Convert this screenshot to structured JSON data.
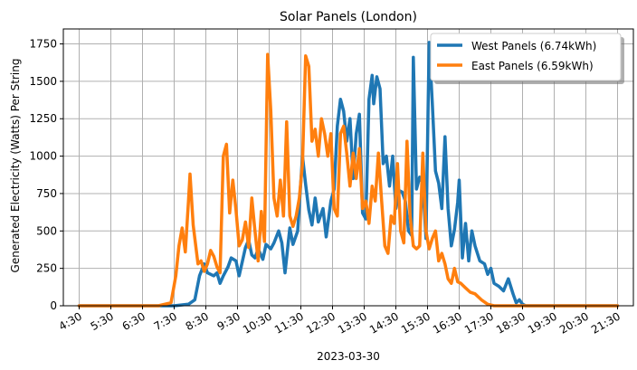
{
  "chart_data": {
    "type": "line",
    "title": "Solar Panels (London)",
    "xlabel": "2023-03-30",
    "ylabel": "Generated Electricity (Watts) Per String",
    "xlim": [
      4.5,
      21.5
    ],
    "ylim": [
      0,
      1850
    ],
    "grid": true,
    "legend_position": "top-right",
    "x_ticks": [
      4.5,
      5.5,
      6.5,
      7.5,
      8.5,
      9.5,
      10.5,
      11.5,
      12.5,
      13.5,
      14.5,
      15.5,
      16.5,
      17.5,
      18.5,
      19.5,
      20.5,
      21.5
    ],
    "x_tick_labels": [
      "4:30",
      "5:30",
      "6:30",
      "7:30",
      "8:30",
      "9:30",
      "10:30",
      "11:30",
      "12:30",
      "13:30",
      "14:30",
      "15:30",
      "16:30",
      "17:30",
      "18:30",
      "19:30",
      "20:30",
      "21:30"
    ],
    "y_ticks": [
      0,
      250,
      500,
      750,
      1000,
      1250,
      1500,
      1750
    ],
    "y_tick_labels": [
      "0",
      "250",
      "500",
      "750",
      "1000",
      "1250",
      "1500",
      "1750"
    ],
    "series": [
      {
        "name": "West Panels (6.74kWh)",
        "color": "#1f77b4",
        "points": [
          [
            4.5,
            0
          ],
          [
            7.5,
            0
          ],
          [
            7.95,
            10
          ],
          [
            8.15,
            40
          ],
          [
            8.3,
            200
          ],
          [
            8.45,
            280
          ],
          [
            8.55,
            220
          ],
          [
            8.75,
            200
          ],
          [
            8.85,
            220
          ],
          [
            8.95,
            150
          ],
          [
            9.05,
            200
          ],
          [
            9.2,
            260
          ],
          [
            9.3,
            320
          ],
          [
            9.45,
            300
          ],
          [
            9.55,
            200
          ],
          [
            9.75,
            390
          ],
          [
            9.85,
            440
          ],
          [
            9.95,
            340
          ],
          [
            10.05,
            320
          ],
          [
            10.15,
            380
          ],
          [
            10.3,
            310
          ],
          [
            10.4,
            410
          ],
          [
            10.55,
            380
          ],
          [
            10.65,
            420
          ],
          [
            10.8,
            500
          ],
          [
            10.9,
            420
          ],
          [
            11.0,
            220
          ],
          [
            11.15,
            520
          ],
          [
            11.25,
            410
          ],
          [
            11.4,
            500
          ],
          [
            11.55,
            1000
          ],
          [
            11.65,
            810
          ],
          [
            11.75,
            640
          ],
          [
            11.85,
            540
          ],
          [
            11.95,
            720
          ],
          [
            12.05,
            560
          ],
          [
            12.2,
            650
          ],
          [
            12.3,
            460
          ],
          [
            12.45,
            700
          ],
          [
            12.55,
            780
          ],
          [
            12.65,
            1200
          ],
          [
            12.75,
            1380
          ],
          [
            12.85,
            1300
          ],
          [
            12.95,
            1100
          ],
          [
            13.05,
            1250
          ],
          [
            13.15,
            850
          ],
          [
            13.25,
            1150
          ],
          [
            13.35,
            1280
          ],
          [
            13.45,
            620
          ],
          [
            13.55,
            580
          ],
          [
            13.65,
            1380
          ],
          [
            13.75,
            1540
          ],
          [
            13.8,
            1350
          ],
          [
            13.9,
            1530
          ],
          [
            14.0,
            1450
          ],
          [
            14.1,
            950
          ],
          [
            14.2,
            1000
          ],
          [
            14.3,
            800
          ],
          [
            14.4,
            1000
          ],
          [
            14.5,
            650
          ],
          [
            14.6,
            770
          ],
          [
            14.7,
            760
          ],
          [
            14.8,
            700
          ],
          [
            14.9,
            500
          ],
          [
            15.0,
            470
          ],
          [
            15.05,
            1660
          ],
          [
            15.15,
            780
          ],
          [
            15.25,
            860
          ],
          [
            15.35,
            820
          ],
          [
            15.45,
            450
          ],
          [
            15.55,
            1760
          ],
          [
            15.65,
            1350
          ],
          [
            15.75,
            900
          ],
          [
            15.85,
            820
          ],
          [
            15.95,
            650
          ],
          [
            16.05,
            1130
          ],
          [
            16.15,
            650
          ],
          [
            16.25,
            400
          ],
          [
            16.35,
            510
          ],
          [
            16.45,
            690
          ],
          [
            16.5,
            840
          ],
          [
            16.6,
            320
          ],
          [
            16.7,
            550
          ],
          [
            16.8,
            300
          ],
          [
            16.9,
            500
          ],
          [
            17.0,
            400
          ],
          [
            17.15,
            300
          ],
          [
            17.3,
            280
          ],
          [
            17.4,
            210
          ],
          [
            17.5,
            250
          ],
          [
            17.6,
            150
          ],
          [
            17.75,
            130
          ],
          [
            17.9,
            100
          ],
          [
            18.05,
            180
          ],
          [
            18.2,
            80
          ],
          [
            18.3,
            20
          ],
          [
            18.4,
            40
          ],
          [
            18.5,
            10
          ],
          [
            18.6,
            0
          ],
          [
            21.5,
            0
          ]
        ]
      },
      {
        "name": "East Panels (6.59kWh)",
        "color": "#ff7f0e",
        "points": [
          [
            4.5,
            0
          ],
          [
            7.0,
            0
          ],
          [
            7.2,
            10
          ],
          [
            7.4,
            20
          ],
          [
            7.55,
            200
          ],
          [
            7.65,
            400
          ],
          [
            7.75,
            520
          ],
          [
            7.85,
            360
          ],
          [
            7.95,
            700
          ],
          [
            8.0,
            880
          ],
          [
            8.1,
            540
          ],
          [
            8.25,
            280
          ],
          [
            8.35,
            300
          ],
          [
            8.45,
            230
          ],
          [
            8.55,
            280
          ],
          [
            8.65,
            370
          ],
          [
            8.75,
            330
          ],
          [
            8.85,
            260
          ],
          [
            8.95,
            220
          ],
          [
            9.05,
            1000
          ],
          [
            9.15,
            1080
          ],
          [
            9.25,
            620
          ],
          [
            9.35,
            840
          ],
          [
            9.45,
            640
          ],
          [
            9.55,
            400
          ],
          [
            9.65,
            440
          ],
          [
            9.75,
            560
          ],
          [
            9.85,
            390
          ],
          [
            9.95,
            720
          ],
          [
            10.05,
            500
          ],
          [
            10.15,
            300
          ],
          [
            10.25,
            630
          ],
          [
            10.35,
            430
          ],
          [
            10.45,
            1680
          ],
          [
            10.55,
            1300
          ],
          [
            10.65,
            720
          ],
          [
            10.75,
            600
          ],
          [
            10.85,
            840
          ],
          [
            10.95,
            600
          ],
          [
            11.05,
            1230
          ],
          [
            11.15,
            600
          ],
          [
            11.25,
            530
          ],
          [
            11.35,
            600
          ],
          [
            11.45,
            720
          ],
          [
            11.55,
            950
          ],
          [
            11.65,
            1670
          ],
          [
            11.75,
            1600
          ],
          [
            11.85,
            1100
          ],
          [
            11.95,
            1180
          ],
          [
            12.05,
            1000
          ],
          [
            12.15,
            1250
          ],
          [
            12.25,
            1150
          ],
          [
            12.35,
            1000
          ],
          [
            12.45,
            1150
          ],
          [
            12.55,
            650
          ],
          [
            12.65,
            600
          ],
          [
            12.75,
            1150
          ],
          [
            12.85,
            1200
          ],
          [
            12.95,
            1020
          ],
          [
            13.05,
            800
          ],
          [
            13.15,
            1020
          ],
          [
            13.25,
            850
          ],
          [
            13.35,
            1050
          ],
          [
            13.45,
            650
          ],
          [
            13.55,
            700
          ],
          [
            13.65,
            550
          ],
          [
            13.75,
            800
          ],
          [
            13.85,
            700
          ],
          [
            13.95,
            1020
          ],
          [
            14.05,
            700
          ],
          [
            14.15,
            400
          ],
          [
            14.25,
            350
          ],
          [
            14.35,
            600
          ],
          [
            14.45,
            550
          ],
          [
            14.55,
            950
          ],
          [
            14.65,
            500
          ],
          [
            14.75,
            420
          ],
          [
            14.85,
            1100
          ],
          [
            14.95,
            600
          ],
          [
            15.05,
            400
          ],
          [
            15.15,
            380
          ],
          [
            15.25,
            400
          ],
          [
            15.35,
            1020
          ],
          [
            15.45,
            500
          ],
          [
            15.55,
            380
          ],
          [
            15.65,
            450
          ],
          [
            15.75,
            500
          ],
          [
            15.85,
            300
          ],
          [
            15.95,
            350
          ],
          [
            16.05,
            280
          ],
          [
            16.15,
            180
          ],
          [
            16.25,
            150
          ],
          [
            16.35,
            250
          ],
          [
            16.45,
            160
          ],
          [
            16.55,
            150
          ],
          [
            16.7,
            120
          ],
          [
            16.85,
            90
          ],
          [
            17.0,
            80
          ],
          [
            17.2,
            40
          ],
          [
            17.4,
            10
          ],
          [
            17.6,
            0
          ],
          [
            21.5,
            0
          ]
        ]
      }
    ]
  }
}
